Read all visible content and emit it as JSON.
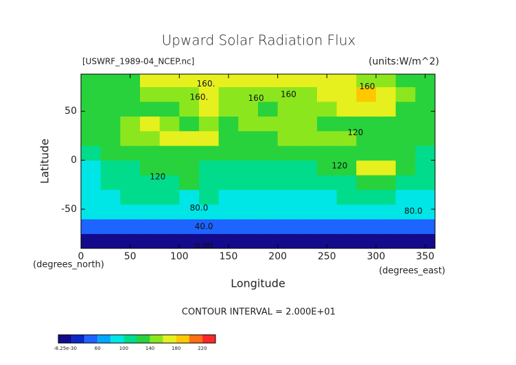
{
  "chart_data": {
    "type": "contour",
    "title": "Upward Solar Radiation Flux",
    "subtitle": "[USWRF_1989-04_NCEP.nc]",
    "units": "(units:W/m^2)",
    "y_label": "Latitude",
    "y_unit_label": "(degrees_north)",
    "x_label": "Longitude",
    "x_unit_label": "(degrees_east)",
    "annotation": "CONTOUR INTERVAL = 2.000E+01",
    "xlim": [
      0,
      360
    ],
    "ylim": [
      -90,
      88
    ],
    "xticks": [
      0,
      50,
      100,
      150,
      200,
      250,
      300,
      350
    ],
    "yticks": [
      -50,
      0,
      50
    ],
    "x": [
      10,
      30,
      50,
      70,
      90,
      110,
      130,
      150,
      170,
      190,
      210,
      230,
      250,
      270,
      290,
      310,
      330,
      350
    ],
    "y": [
      -82.5,
      -67.5,
      -52.5,
      -37.5,
      -22.5,
      -7.5,
      7.5,
      22.5,
      37.5,
      52.5,
      67.5,
      82.5
    ],
    "z": [
      [
        15,
        15,
        15,
        15,
        15,
        15,
        15,
        15,
        15,
        15,
        15,
        15,
        15,
        15,
        15,
        15,
        15,
        15
      ],
      [
        45,
        45,
        45,
        45,
        45,
        45,
        45,
        45,
        45,
        45,
        45,
        45,
        45,
        45,
        45,
        45,
        45,
        45
      ],
      [
        80,
        80,
        80,
        80,
        80,
        80,
        80,
        80,
        80,
        80,
        80,
        80,
        80,
        80,
        80,
        80,
        80,
        80
      ],
      [
        95,
        95,
        100,
        100,
        100,
        95,
        100,
        95,
        95,
        95,
        95,
        95,
        95,
        100,
        105,
        100,
        95,
        95
      ],
      [
        90,
        105,
        110,
        110,
        110,
        120,
        110,
        105,
        105,
        105,
        105,
        105,
        105,
        115,
        120,
        120,
        110,
        105
      ],
      [
        85,
        110,
        115,
        120,
        125,
        125,
        115,
        115,
        115,
        115,
        115,
        115,
        120,
        130,
        170,
        175,
        130,
        115
      ],
      [
        100,
        120,
        125,
        120,
        130,
        125,
        120,
        120,
        125,
        125,
        120,
        125,
        130,
        125,
        120,
        130,
        135,
        110
      ],
      [
        120,
        130,
        150,
        150,
        160,
        165,
        160,
        130,
        130,
        135,
        150,
        155,
        145,
        140,
        130,
        130,
        125,
        120
      ],
      [
        125,
        130,
        140,
        170,
        145,
        130,
        150,
        135,
        140,
        145,
        150,
        145,
        130,
        130,
        135,
        130,
        125,
        120
      ],
      [
        120,
        130,
        125,
        130,
        135,
        140,
        165,
        145,
        140,
        135,
        140,
        145,
        145,
        160,
        175,
        160,
        130,
        125
      ],
      [
        130,
        135,
        135,
        140,
        140,
        145,
        160,
        150,
        150,
        145,
        145,
        150,
        160,
        175,
        185,
        170,
        140,
        130
      ],
      [
        125,
        125,
        130,
        160,
        165,
        165,
        165,
        165,
        165,
        165,
        165,
        165,
        165,
        165,
        150,
        140,
        130,
        125
      ]
    ],
    "levels": [
      0,
      20,
      40,
      60,
      80,
      100,
      120,
      140,
      160,
      180,
      200,
      220,
      240
    ],
    "colors": [
      "#140a8c",
      "#0a28c8",
      "#1e64ff",
      "#00a8ff",
      "#00e6e6",
      "#00dc8c",
      "#28d23c",
      "#8ce61e",
      "#e6f01e",
      "#ffc800",
      "#ff6e14",
      "#ff2828"
    ],
    "contour_labels": [
      {
        "text": "160.",
        "x": 127,
        "y": 78
      },
      {
        "text": "160.",
        "x": 120,
        "y": 64
      },
      {
        "text": "160",
        "x": 178,
        "y": 63
      },
      {
        "text": "160",
        "x": 211,
        "y": 67
      },
      {
        "text": "160",
        "x": 291,
        "y": 75
      },
      {
        "text": "120",
        "x": 279,
        "y": 28
      },
      {
        "text": "120",
        "x": 263,
        "y": -6
      },
      {
        "text": "120",
        "x": 78,
        "y": -17
      },
      {
        "text": "80.0",
        "x": 120,
        "y": -49
      },
      {
        "text": "80.0",
        "x": 338,
        "y": -52
      },
      {
        "text": "40.0",
        "x": 125,
        "y": -68
      },
      {
        "text": "0.00",
        "x": 125,
        "y": -88
      }
    ],
    "colorbar_ticks": [
      {
        "value": 0,
        "label": "-8.25e-30"
      },
      60,
      100,
      140,
      180,
      220
    ]
  }
}
